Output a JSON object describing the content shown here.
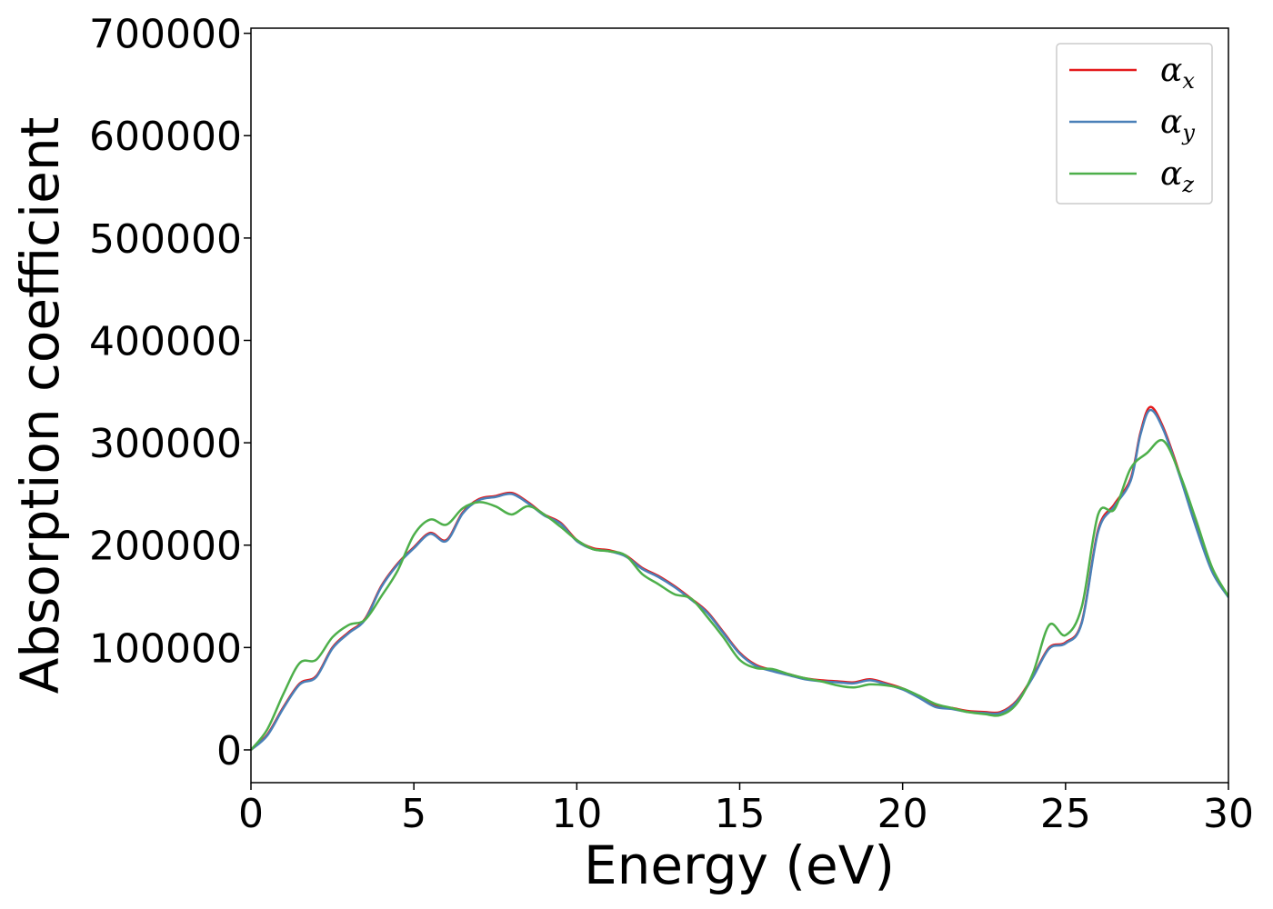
{
  "chart_data": {
    "type": "line",
    "title": "",
    "xlabel": "Energy (eV)",
    "ylabel": "Absorption coefficient",
    "xlim": [
      0,
      30
    ],
    "ylim": [
      -32000,
      705000
    ],
    "xticks": [
      0,
      5,
      10,
      15,
      20,
      25,
      30
    ],
    "yticks": [
      0,
      100000,
      200000,
      300000,
      400000,
      500000,
      600000,
      700000
    ],
    "grid": false,
    "legend_position": "top-right",
    "series": [
      {
        "name": "αx",
        "symbol": "α",
        "subscript": "x",
        "color": "#e41a1c",
        "x": [
          0,
          0.5,
          1.0,
          1.5,
          2.0,
          2.5,
          3.0,
          3.5,
          4.0,
          4.5,
          5.0,
          5.5,
          6.0,
          6.5,
          7.0,
          7.5,
          8.0,
          8.5,
          9.0,
          9.5,
          10.0,
          10.5,
          11.0,
          11.5,
          12.0,
          12.5,
          13.0,
          13.5,
          14.0,
          14.5,
          15.0,
          15.5,
          16.0,
          16.5,
          17.0,
          17.5,
          18.0,
          18.5,
          19.0,
          19.5,
          20.0,
          20.5,
          21.0,
          21.5,
          22.0,
          22.5,
          23.0,
          23.5,
          24.0,
          24.5,
          25.0,
          25.5,
          26.0,
          26.5,
          27.0,
          27.3,
          27.6,
          28.0,
          28.5,
          29.0,
          29.5,
          30.0
        ],
        "y": [
          0,
          15000,
          42000,
          65000,
          72000,
          100000,
          115000,
          128000,
          160000,
          182000,
          198000,
          212000,
          205000,
          232000,
          245000,
          248000,
          251000,
          242000,
          230000,
          222000,
          205000,
          197000,
          195000,
          190000,
          178000,
          170000,
          160000,
          148000,
          135000,
          115000,
          95000,
          83000,
          78000,
          74000,
          70000,
          68000,
          67000,
          66000,
          69000,
          65000,
          60000,
          52000,
          43000,
          41000,
          38000,
          37000,
          37000,
          48000,
          72000,
          100000,
          105000,
          125000,
          215000,
          240000,
          265000,
          310000,
          335000,
          315000,
          270000,
          220000,
          175000,
          150000
        ]
      },
      {
        "name": "αy",
        "symbol": "α",
        "subscript": "y",
        "color": "#4a80b8",
        "x": [
          0,
          0.5,
          1.0,
          1.5,
          2.0,
          2.5,
          3.0,
          3.5,
          4.0,
          4.5,
          5.0,
          5.5,
          6.0,
          6.5,
          7.0,
          7.5,
          8.0,
          8.5,
          9.0,
          9.5,
          10.0,
          10.5,
          11.0,
          11.5,
          12.0,
          12.5,
          13.0,
          13.5,
          14.0,
          14.5,
          15.0,
          15.5,
          16.0,
          16.5,
          17.0,
          17.5,
          18.0,
          18.5,
          19.0,
          19.5,
          20.0,
          20.5,
          21.0,
          21.5,
          22.0,
          22.5,
          23.0,
          23.5,
          24.0,
          24.5,
          25.0,
          25.5,
          26.0,
          26.5,
          27.0,
          27.3,
          27.6,
          28.0,
          28.5,
          29.0,
          29.5,
          30.0
        ],
        "y": [
          0,
          14000,
          41000,
          64000,
          71000,
          99000,
          114000,
          127000,
          159000,
          181000,
          197000,
          211000,
          204000,
          231000,
          244000,
          247000,
          250000,
          241000,
          229000,
          221000,
          204000,
          196000,
          194000,
          189000,
          177000,
          169000,
          159000,
          147000,
          134000,
          114000,
          94000,
          82000,
          77000,
          73000,
          69000,
          67000,
          66000,
          65000,
          68000,
          64000,
          59000,
          51000,
          42000,
          40000,
          37000,
          36000,
          36000,
          47000,
          71000,
          99000,
          104000,
          124000,
          213000,
          238000,
          263000,
          308000,
          332000,
          313000,
          268000,
          218000,
          174000,
          149000
        ]
      },
      {
        "name": "αz",
        "symbol": "α",
        "subscript": "z",
        "color": "#4daf4a",
        "x": [
          0,
          0.5,
          1.0,
          1.5,
          2.0,
          2.5,
          3.0,
          3.5,
          4.0,
          4.5,
          5.0,
          5.5,
          6.0,
          6.5,
          7.0,
          7.5,
          8.0,
          8.5,
          9.0,
          9.5,
          10.0,
          10.5,
          11.0,
          11.5,
          12.0,
          12.5,
          13.0,
          13.5,
          14.0,
          14.5,
          15.0,
          15.5,
          16.0,
          16.5,
          17.0,
          17.5,
          18.0,
          18.5,
          19.0,
          19.5,
          20.0,
          20.5,
          21.0,
          21.5,
          22.0,
          22.5,
          23.0,
          23.5,
          24.0,
          24.5,
          25.0,
          25.5,
          26.0,
          26.5,
          27.0,
          27.5,
          28.0,
          28.5,
          29.0,
          29.5,
          30.0
        ],
        "y": [
          0,
          20000,
          55000,
          85000,
          88000,
          110000,
          122000,
          127000,
          150000,
          175000,
          210000,
          225000,
          220000,
          236000,
          242000,
          238000,
          230000,
          238000,
          230000,
          218000,
          205000,
          196000,
          194000,
          190000,
          172000,
          162000,
          152000,
          148000,
          130000,
          110000,
          88000,
          80000,
          79000,
          74000,
          70000,
          67000,
          63000,
          61000,
          64000,
          63000,
          60000,
          53000,
          45000,
          41000,
          37000,
          35000,
          34000,
          45000,
          75000,
          122000,
          112000,
          140000,
          230000,
          235000,
          275000,
          290000,
          302000,
          270000,
          225000,
          178000,
          150000
        ]
      }
    ]
  }
}
